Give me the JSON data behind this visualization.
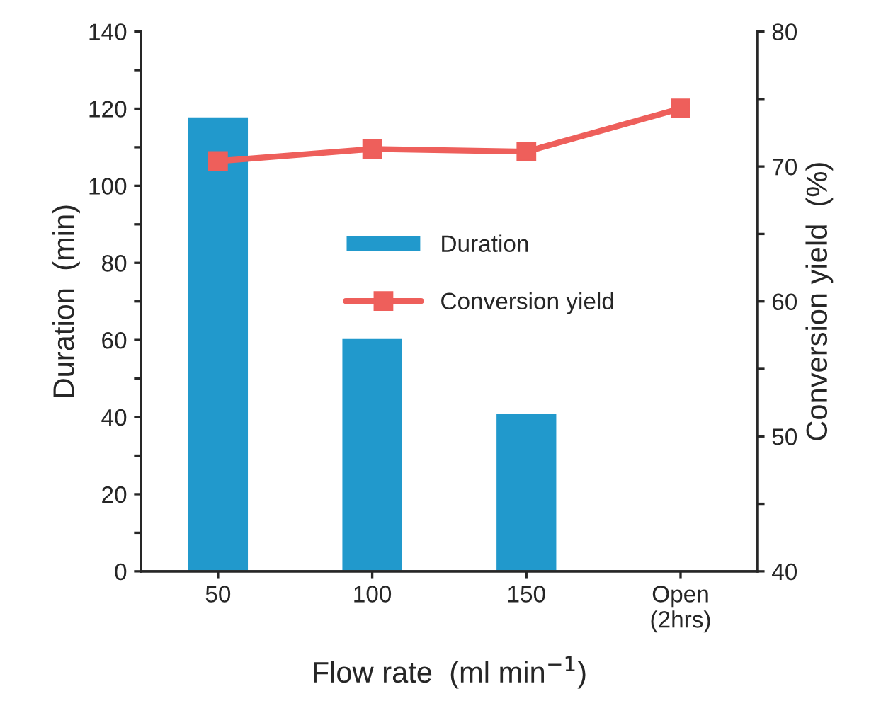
{
  "chart_data": {
    "type": "bar",
    "xlabel": "Flow rate  (ml min$^{−1}$)",
    "ylabel": "Duration  (min)",
    "y2label": "Conversion yield  (%)",
    "categories": [
      "50",
      "100",
      "150",
      "Open\n(2hrs)"
    ],
    "series": [
      {
        "name": "Duration",
        "color": "#2199cc",
        "values": [
          118,
          60.5,
          41,
          null
        ]
      },
      {
        "name": "Conversion yield",
        "type": "line",
        "axis": "y2",
        "color": "#ee5f5b",
        "marker": "square",
        "line_style": "solid",
        "values": [
          70.4,
          71.3,
          71.1,
          74.3
        ]
      }
    ],
    "ylim": [
      0,
      140
    ],
    "yticks": [
      0,
      {
        "value": 10,
        "label": null
      },
      20,
      {
        "value": 30,
        "label": null
      },
      40,
      {
        "value": 50,
        "label": null
      },
      60,
      {
        "value": 70,
        "label": null
      },
      80,
      {
        "value": 90,
        "label": null
      },
      100,
      {
        "value": 110,
        "label": null
      },
      120,
      {
        "value": 130,
        "label": null
      },
      140
    ],
    "y2lim": [
      40,
      80
    ],
    "y2ticks": [
      40,
      {
        "value": 45,
        "label": null
      },
      50,
      {
        "value": 55,
        "label": null
      },
      60,
      {
        "value": 65,
        "label": null
      },
      70,
      {
        "value": 75,
        "label": null
      },
      80
    ],
    "grid": false,
    "legend": "center"
  }
}
